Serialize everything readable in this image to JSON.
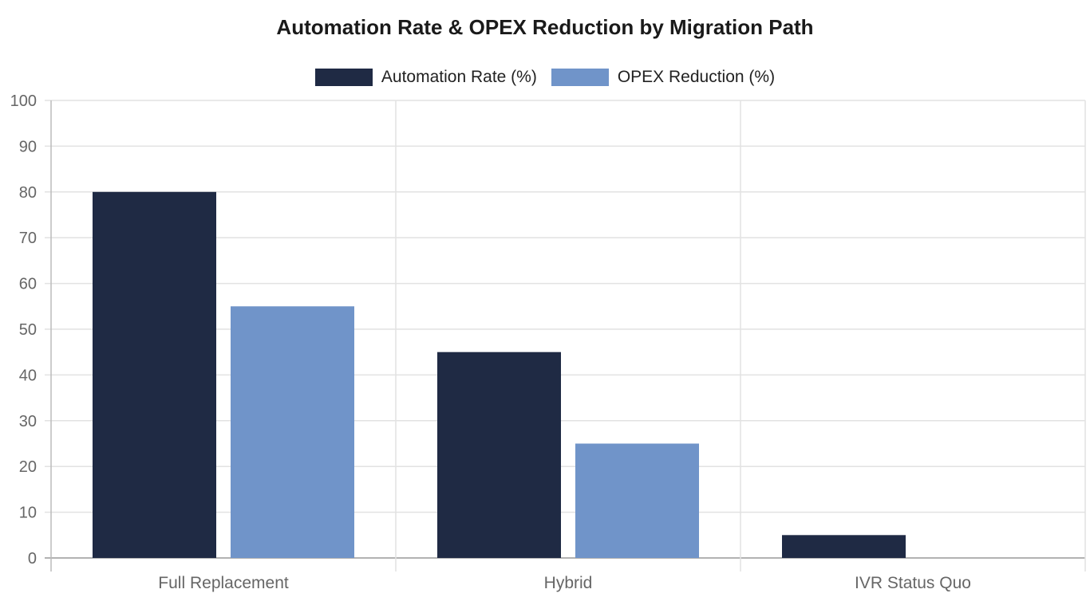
{
  "chart_data": {
    "type": "bar",
    "title": "Automation Rate & OPEX Reduction by Migration Path",
    "categories": [
      "Full Replacement",
      "Hybrid",
      "IVR Status Quo"
    ],
    "series": [
      {
        "name": "Automation Rate (%)",
        "values": [
          80,
          45,
          5
        ],
        "color": "#1f2a44"
      },
      {
        "name": "OPEX Reduction (%)",
        "values": [
          55,
          25,
          0
        ],
        "color": "#7094c9"
      }
    ],
    "xlabel": "",
    "ylabel": "",
    "ylim": [
      0,
      100
    ],
    "yticks": [
      0,
      10,
      20,
      30,
      40,
      50,
      60,
      70,
      80,
      90,
      100
    ],
    "grid": true,
    "legend_position": "top"
  }
}
